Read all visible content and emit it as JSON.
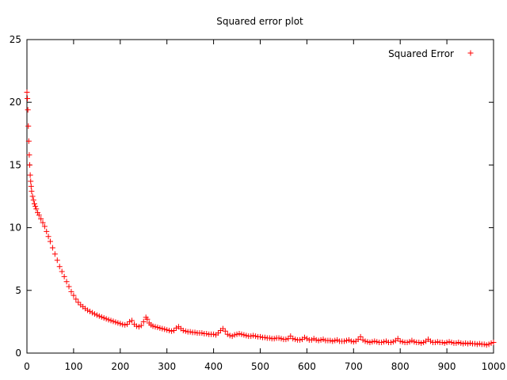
{
  "chart_data": {
    "type": "scatter",
    "title": "Squared error plot",
    "xlabel": "",
    "ylabel": "",
    "xlim": [
      0,
      1000
    ],
    "ylim": [
      0,
      25
    ],
    "x_ticks": [
      0,
      100,
      200,
      300,
      400,
      500,
      600,
      700,
      800,
      900,
      1000
    ],
    "y_ticks": [
      0,
      5,
      10,
      15,
      20,
      25
    ],
    "grid": false,
    "legend_position": "top-right",
    "marker": "+",
    "color": "#ff0000",
    "series": [
      {
        "name": "Squared Error",
        "points": [
          [
            0,
            20.8
          ],
          [
            1,
            20.3
          ],
          [
            2,
            19.4
          ],
          [
            3,
            18.1
          ],
          [
            4,
            16.9
          ],
          [
            5,
            15.8
          ],
          [
            6,
            15.0
          ],
          [
            7,
            14.2
          ],
          [
            8,
            13.7
          ],
          [
            9,
            13.3
          ],
          [
            10,
            12.9
          ],
          [
            12,
            12.5
          ],
          [
            14,
            12.2
          ],
          [
            16,
            11.9
          ],
          [
            18,
            11.7
          ],
          [
            20,
            11.5
          ],
          [
            23,
            11.2
          ],
          [
            26,
            11.0
          ],
          [
            30,
            10.7
          ],
          [
            34,
            10.4
          ],
          [
            38,
            10.1
          ],
          [
            42,
            9.7
          ],
          [
            46,
            9.3
          ],
          [
            50,
            8.9
          ],
          [
            55,
            8.4
          ],
          [
            60,
            7.9
          ],
          [
            65,
            7.4
          ],
          [
            70,
            6.9
          ],
          [
            75,
            6.5
          ],
          [
            80,
            6.1
          ],
          [
            85,
            5.7
          ],
          [
            90,
            5.3
          ],
          [
            95,
            4.9
          ],
          [
            100,
            4.6
          ],
          [
            105,
            4.3
          ],
          [
            110,
            4.05
          ],
          [
            115,
            3.85
          ],
          [
            120,
            3.7
          ],
          [
            125,
            3.55
          ],
          [
            130,
            3.42
          ],
          [
            135,
            3.32
          ],
          [
            140,
            3.22
          ],
          [
            145,
            3.12
          ],
          [
            150,
            3.03
          ],
          [
            155,
            2.95
          ],
          [
            160,
            2.88
          ],
          [
            165,
            2.8
          ],
          [
            170,
            2.73
          ],
          [
            175,
            2.66
          ],
          [
            180,
            2.6
          ],
          [
            185,
            2.53
          ],
          [
            190,
            2.47
          ],
          [
            195,
            2.41
          ],
          [
            200,
            2.35
          ],
          [
            205,
            2.28
          ],
          [
            210,
            2.25
          ],
          [
            215,
            2.3
          ],
          [
            220,
            2.5
          ],
          [
            225,
            2.6
          ],
          [
            230,
            2.3
          ],
          [
            235,
            2.15
          ],
          [
            240,
            2.1
          ],
          [
            245,
            2.2
          ],
          [
            250,
            2.5
          ],
          [
            255,
            2.85
          ],
          [
            258,
            2.7
          ],
          [
            262,
            2.4
          ],
          [
            266,
            2.25
          ],
          [
            270,
            2.15
          ],
          [
            275,
            2.1
          ],
          [
            280,
            2.05
          ],
          [
            285,
            2.0
          ],
          [
            290,
            1.95
          ],
          [
            295,
            1.9
          ],
          [
            300,
            1.85
          ],
          [
            305,
            1.8
          ],
          [
            310,
            1.75
          ],
          [
            315,
            1.8
          ],
          [
            320,
            2.0
          ],
          [
            325,
            2.1
          ],
          [
            330,
            1.95
          ],
          [
            335,
            1.8
          ],
          [
            340,
            1.75
          ],
          [
            345,
            1.7
          ],
          [
            350,
            1.7
          ],
          [
            355,
            1.65
          ],
          [
            360,
            1.65
          ],
          [
            365,
            1.6
          ],
          [
            370,
            1.6
          ],
          [
            375,
            1.6
          ],
          [
            380,
            1.55
          ],
          [
            385,
            1.55
          ],
          [
            390,
            1.5
          ],
          [
            395,
            1.5
          ],
          [
            400,
            1.5
          ],
          [
            405,
            1.45
          ],
          [
            410,
            1.6
          ],
          [
            415,
            1.8
          ],
          [
            420,
            1.95
          ],
          [
            425,
            1.75
          ],
          [
            430,
            1.5
          ],
          [
            435,
            1.4
          ],
          [
            440,
            1.35
          ],
          [
            445,
            1.45
          ],
          [
            450,
            1.5
          ],
          [
            455,
            1.55
          ],
          [
            460,
            1.5
          ],
          [
            465,
            1.45
          ],
          [
            470,
            1.4
          ],
          [
            475,
            1.35
          ],
          [
            480,
            1.35
          ],
          [
            485,
            1.4
          ],
          [
            490,
            1.35
          ],
          [
            495,
            1.3
          ],
          [
            500,
            1.3
          ],
          [
            505,
            1.25
          ],
          [
            510,
            1.25
          ],
          [
            515,
            1.2
          ],
          [
            520,
            1.2
          ],
          [
            525,
            1.15
          ],
          [
            530,
            1.15
          ],
          [
            535,
            1.2
          ],
          [
            540,
            1.2
          ],
          [
            545,
            1.15
          ],
          [
            550,
            1.1
          ],
          [
            555,
            1.1
          ],
          [
            560,
            1.15
          ],
          [
            565,
            1.35
          ],
          [
            570,
            1.15
          ],
          [
            575,
            1.1
          ],
          [
            580,
            1.05
          ],
          [
            585,
            1.05
          ],
          [
            590,
            1.1
          ],
          [
            595,
            1.25
          ],
          [
            600,
            1.15
          ],
          [
            605,
            1.05
          ],
          [
            610,
            1.05
          ],
          [
            615,
            1.15
          ],
          [
            620,
            1.05
          ],
          [
            625,
            1.0
          ],
          [
            630,
            1.05
          ],
          [
            635,
            1.1
          ],
          [
            640,
            1.0
          ],
          [
            645,
            1.0
          ],
          [
            650,
            1.0
          ],
          [
            655,
            0.95
          ],
          [
            660,
            1.0
          ],
          [
            665,
            1.05
          ],
          [
            670,
            0.95
          ],
          [
            675,
            0.95
          ],
          [
            680,
            0.95
          ],
          [
            685,
            1.0
          ],
          [
            690,
            1.05
          ],
          [
            695,
            0.95
          ],
          [
            700,
            0.9
          ],
          [
            705,
            0.95
          ],
          [
            710,
            1.1
          ],
          [
            715,
            1.3
          ],
          [
            720,
            1.05
          ],
          [
            725,
            0.95
          ],
          [
            730,
            0.9
          ],
          [
            735,
            0.85
          ],
          [
            740,
            0.9
          ],
          [
            745,
            0.95
          ],
          [
            750,
            0.9
          ],
          [
            755,
            0.85
          ],
          [
            760,
            0.85
          ],
          [
            765,
            0.9
          ],
          [
            770,
            0.95
          ],
          [
            775,
            0.85
          ],
          [
            780,
            0.85
          ],
          [
            785,
            0.9
          ],
          [
            790,
            1.0
          ],
          [
            795,
            1.15
          ],
          [
            800,
            0.95
          ],
          [
            805,
            0.9
          ],
          [
            810,
            0.85
          ],
          [
            815,
            0.85
          ],
          [
            820,
            0.9
          ],
          [
            825,
            1.0
          ],
          [
            830,
            0.9
          ],
          [
            835,
            0.85
          ],
          [
            840,
            0.85
          ],
          [
            845,
            0.8
          ],
          [
            850,
            0.85
          ],
          [
            855,
            0.95
          ],
          [
            860,
            1.1
          ],
          [
            865,
            0.95
          ],
          [
            870,
            0.85
          ],
          [
            875,
            0.85
          ],
          [
            880,
            0.9
          ],
          [
            885,
            0.85
          ],
          [
            890,
            0.85
          ],
          [
            895,
            0.8
          ],
          [
            900,
            0.85
          ],
          [
            905,
            0.9
          ],
          [
            910,
            0.85
          ],
          [
            915,
            0.8
          ],
          [
            920,
            0.8
          ],
          [
            925,
            0.85
          ],
          [
            930,
            0.8
          ],
          [
            935,
            0.75
          ],
          [
            940,
            0.8
          ],
          [
            945,
            0.75
          ],
          [
            950,
            0.8
          ],
          [
            955,
            0.75
          ],
          [
            960,
            0.75
          ],
          [
            965,
            0.7
          ],
          [
            970,
            0.75
          ],
          [
            975,
            0.7
          ],
          [
            980,
            0.7
          ],
          [
            985,
            0.65
          ],
          [
            990,
            0.7
          ],
          [
            995,
            0.8
          ],
          [
            1000,
            0.85
          ]
        ]
      }
    ]
  }
}
